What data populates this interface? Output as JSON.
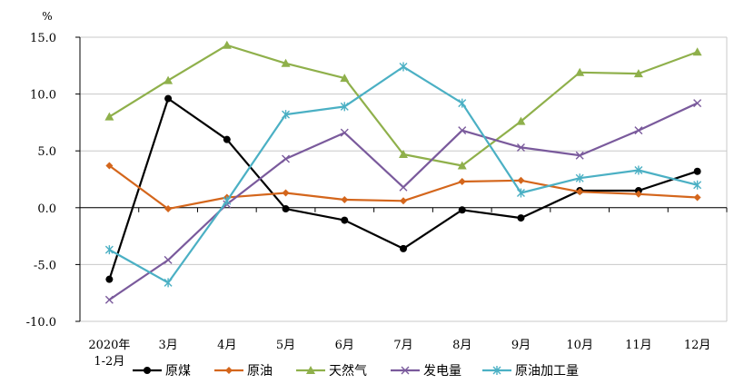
{
  "chart_data": {
    "type": "line",
    "unit": "%",
    "categories": [
      [
        "2020年",
        "1-2月"
      ],
      [
        "3月"
      ],
      [
        "4月"
      ],
      [
        "5月"
      ],
      [
        "6月"
      ],
      [
        "7月"
      ],
      [
        "8月"
      ],
      [
        "9月"
      ],
      [
        "10月"
      ],
      [
        "11月"
      ],
      [
        "12月"
      ]
    ],
    "ylim": [
      -10,
      15
    ],
    "yticks": [
      15,
      10,
      5,
      0,
      -5,
      -10
    ],
    "ytick_labels": [
      "15.0",
      "10.0",
      "5.0",
      "0.0",
      "-5.0",
      "-10.0"
    ],
    "grid": "horizontal",
    "legend_position": "bottom",
    "series": [
      {
        "name": "原煤",
        "color": "#000000",
        "marker": "circle",
        "values": [
          -6.3,
          9.6,
          6.0,
          -0.1,
          -1.1,
          -3.6,
          -0.2,
          -0.9,
          1.5,
          1.5,
          3.2
        ]
      },
      {
        "name": "原油",
        "color": "#d4661c",
        "marker": "diamond",
        "values": [
          3.7,
          -0.1,
          0.9,
          1.3,
          0.7,
          0.6,
          2.3,
          2.4,
          1.4,
          1.2,
          0.9
        ]
      },
      {
        "name": "天然气",
        "color": "#8fb04b",
        "marker": "triangle",
        "values": [
          8.0,
          11.2,
          14.3,
          12.7,
          11.4,
          4.7,
          3.7,
          7.6,
          11.9,
          11.8,
          13.7
        ]
      },
      {
        "name": "发电量",
        "color": "#7a5a9c",
        "marker": "x",
        "values": [
          -8.1,
          -4.6,
          0.3,
          4.3,
          6.6,
          1.8,
          6.8,
          5.3,
          4.6,
          6.8,
          9.2
        ]
      },
      {
        "name": "原油加工量",
        "color": "#4bb0c4",
        "marker": "star",
        "values": [
          -3.7,
          -6.6,
          0.6,
          8.2,
          8.9,
          12.4,
          9.2,
          1.3,
          2.6,
          3.3,
          2.0
        ]
      }
    ]
  }
}
